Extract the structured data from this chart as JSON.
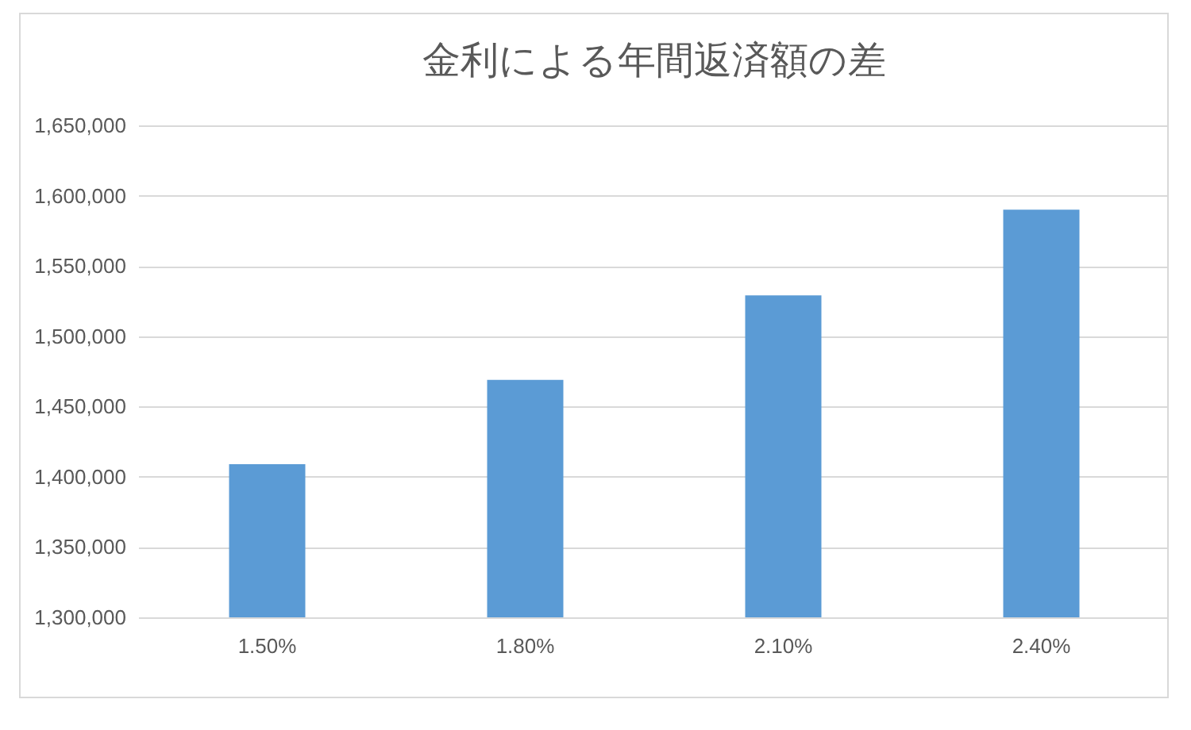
{
  "chart_data": {
    "type": "bar",
    "title": "金利による年間返済額の差",
    "categories": [
      "1.50%",
      "1.80%",
      "2.10%",
      "2.40%"
    ],
    "values": [
      1409000,
      1469000,
      1529000,
      1590000
    ],
    "color": "#5b9bd5",
    "ylim": [
      1300000,
      1650000
    ],
    "yticks": [
      {
        "value": 1300000,
        "label": "1,300,000"
      },
      {
        "value": 1350000,
        "label": "1,350,000"
      },
      {
        "value": 1400000,
        "label": "1,400,000"
      },
      {
        "value": 1450000,
        "label": "1,450,000"
      },
      {
        "value": 1500000,
        "label": "1,500,000"
      },
      {
        "value": 1550000,
        "label": "1,550,000"
      },
      {
        "value": 1600000,
        "label": "1,600,000"
      },
      {
        "value": 1650000,
        "label": "1,650,000"
      }
    ],
    "grid": "y"
  }
}
